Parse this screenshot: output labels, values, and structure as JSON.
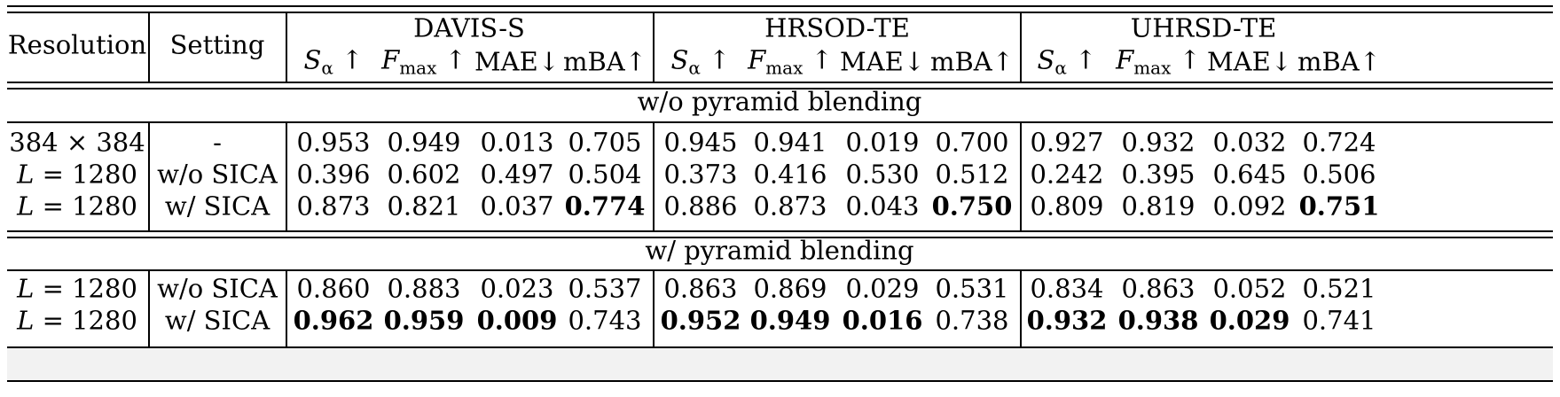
{
  "header": {
    "resolution": "Resolution",
    "setting": "Setting",
    "datasets": [
      "DAVIS-S",
      "HRSOD-TE",
      "UHRSD-TE"
    ],
    "metrics": [
      {
        "sym": "S",
        "sub": "α",
        "arrow": " ↑"
      },
      {
        "sym": "F",
        "sub": "max",
        "arrow": " ↑"
      },
      {
        "sym": "",
        "sub": "",
        "arrow": "MAE↓"
      },
      {
        "sym": "",
        "sub": "",
        "arrow": "mBA↑"
      }
    ]
  },
  "sections": [
    {
      "title": "w/o pyramid blending",
      "rows": [
        {
          "res": "384 × 384",
          "setting": "-",
          "values": [
            "0.953",
            "0.949",
            "0.013",
            "0.705",
            "0.945",
            "0.941",
            "0.019",
            "0.700",
            "0.927",
            "0.932",
            "0.032",
            "0.724"
          ],
          "bold": [],
          "highlight": false
        },
        {
          "res": "L = 1280",
          "setting": "w/o SICA",
          "values": [
            "0.396",
            "0.602",
            "0.497",
            "0.504",
            "0.373",
            "0.416",
            "0.530",
            "0.512",
            "0.242",
            "0.395",
            "0.645",
            "0.506"
          ],
          "bold": [],
          "highlight": false
        },
        {
          "res": "L = 1280",
          "setting": "w/ SICA",
          "values": [
            "0.873",
            "0.821",
            "0.037",
            "0.774",
            "0.886",
            "0.873",
            "0.043",
            "0.750",
            "0.809",
            "0.819",
            "0.092",
            "0.751"
          ],
          "bold": [
            3,
            7,
            11
          ],
          "highlight": false
        }
      ]
    },
    {
      "title": "w/ pyramid blending",
      "rows": [
        {
          "res": "L = 1280",
          "setting": "w/o SICA",
          "values": [
            "0.860",
            "0.883",
            "0.023",
            "0.537",
            "0.863",
            "0.869",
            "0.029",
            "0.531",
            "0.834",
            "0.863",
            "0.052",
            "0.521"
          ],
          "bold": [],
          "highlight": false
        },
        {
          "res": "L = 1280",
          "setting": "w/ SICA",
          "values": [
            "0.962",
            "0.959",
            "0.009",
            "0.743",
            "0.952",
            "0.949",
            "0.016",
            "0.738",
            "0.932",
            "0.938",
            "0.029",
            "0.741"
          ],
          "bold": [
            0,
            1,
            2,
            4,
            5,
            6,
            8,
            9,
            10
          ],
          "highlight": true
        }
      ]
    }
  ]
}
